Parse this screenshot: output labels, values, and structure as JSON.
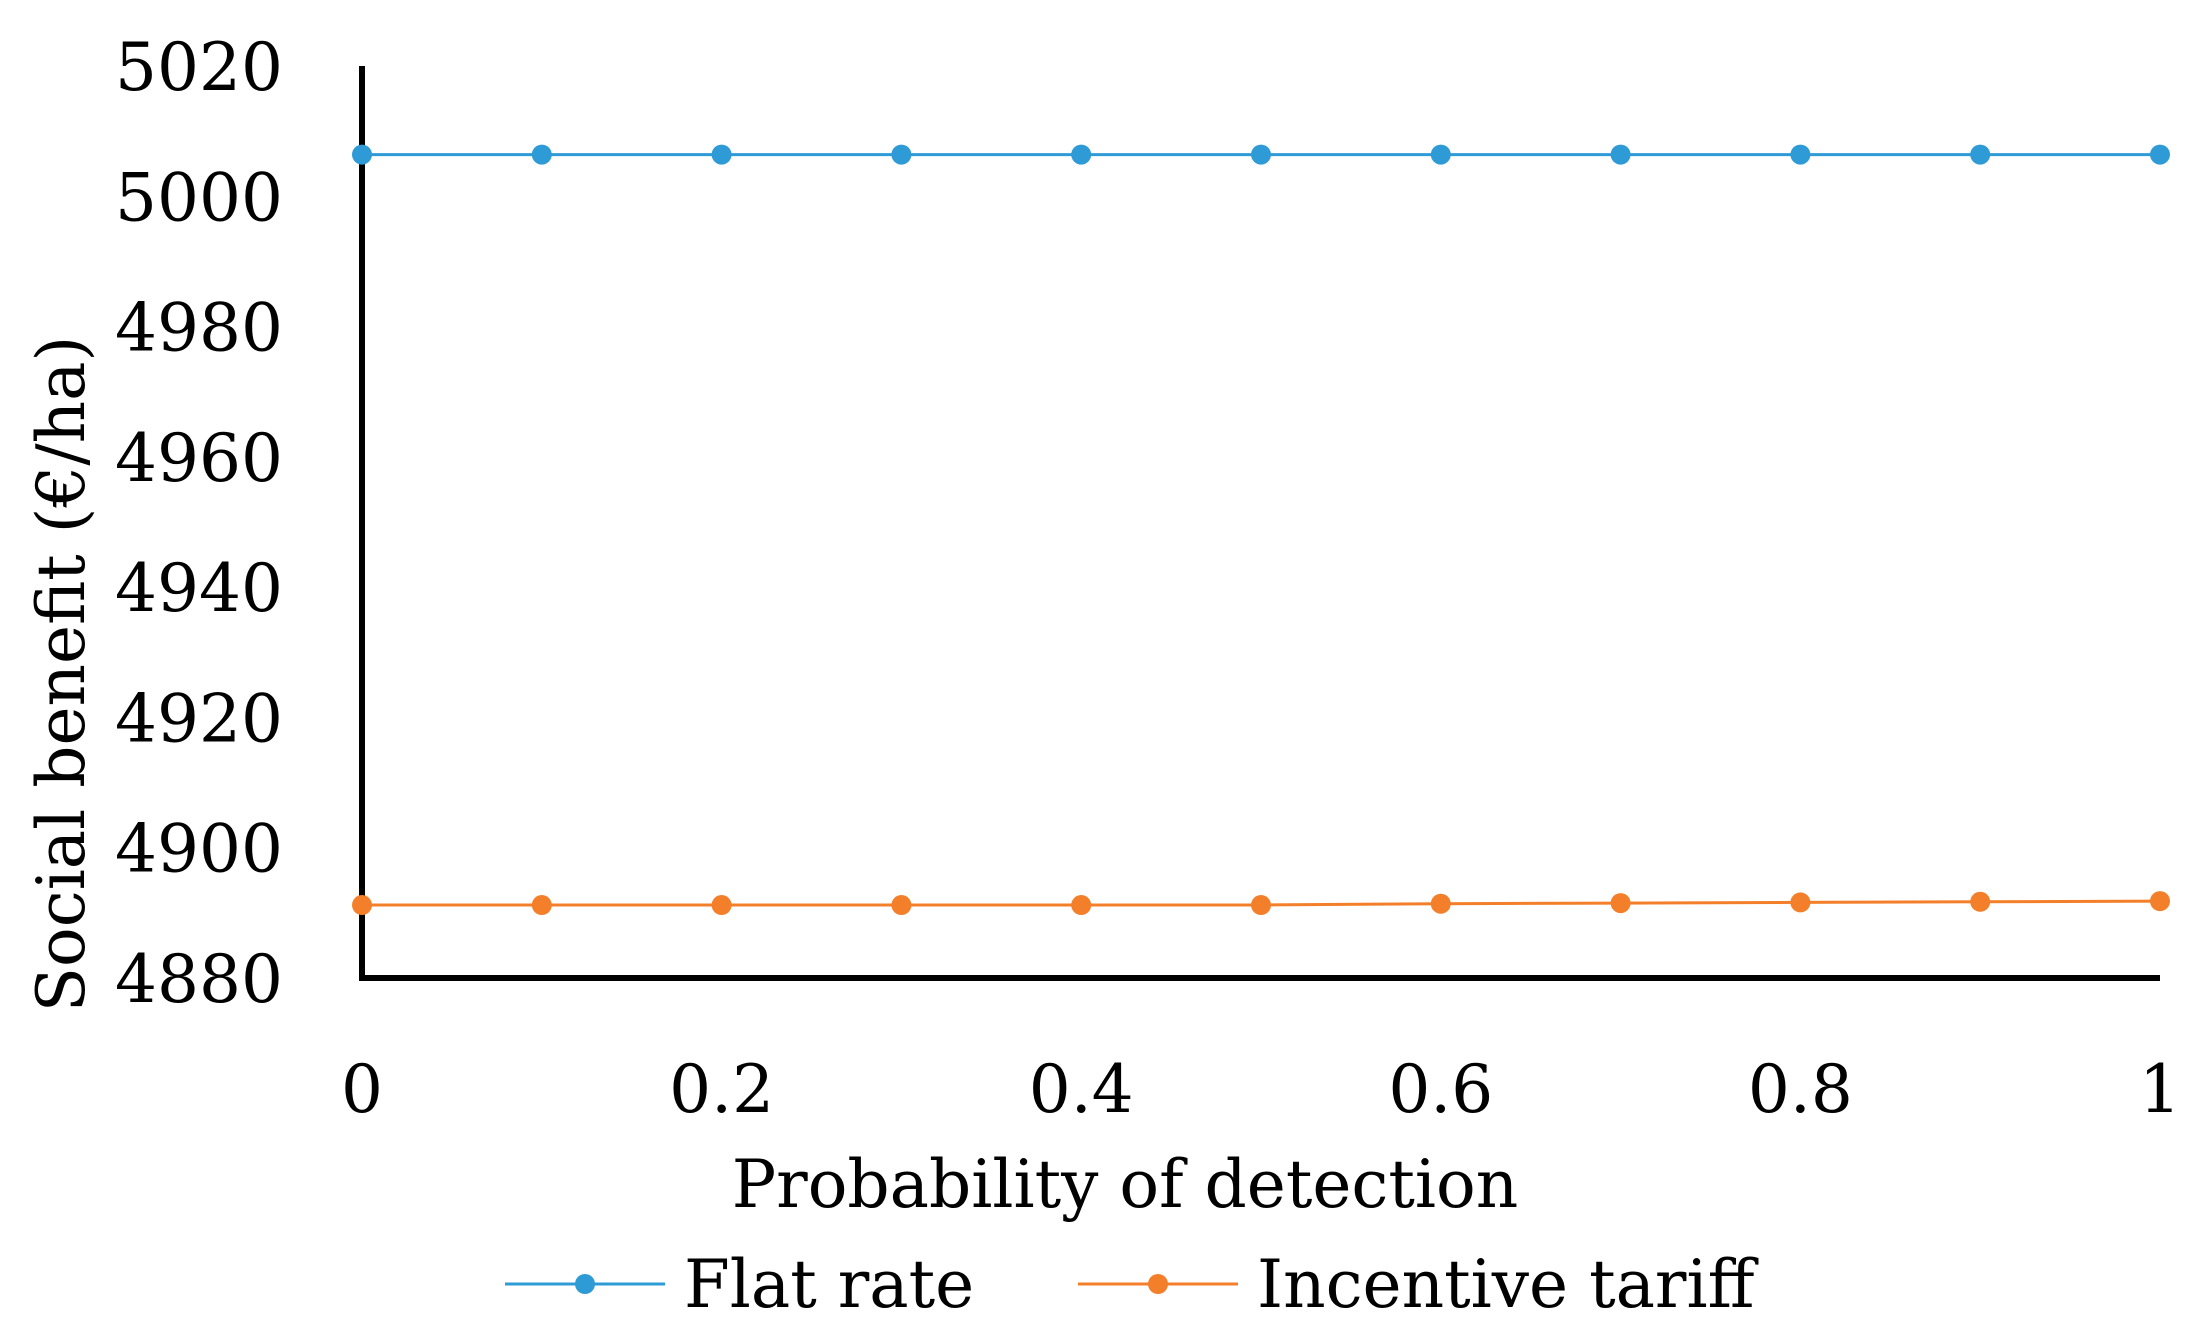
{
  "chart_data": {
    "type": "line",
    "title": "",
    "xlabel": "Probability of detection",
    "ylabel": "Social benefit (€/ha)",
    "x": [
      0,
      0.1,
      0.2,
      0.3,
      0.4,
      0.5,
      0.6,
      0.7,
      0.8,
      0.9,
      1
    ],
    "xlim": [
      0,
      1
    ],
    "ylim": [
      4880,
      5020
    ],
    "x_ticks": [
      0,
      0.2,
      0.4,
      0.6,
      0.8,
      1
    ],
    "x_tick_labels": [
      "0",
      "0.2",
      "0.4",
      "0.6",
      "0.8",
      "1"
    ],
    "y_ticks": [
      4880,
      4900,
      4920,
      4940,
      4960,
      4980,
      5000,
      5020
    ],
    "y_tick_labels": [
      "4880",
      "4900",
      "4920",
      "4940",
      "4960",
      "4980",
      "5000",
      "5020"
    ],
    "grid": false,
    "legend_position": "bottom",
    "series": [
      {
        "name": "Flat rate",
        "color": "#2E9BD6",
        "values": [
          5006.4,
          5006.4,
          5006.4,
          5006.4,
          5006.4,
          5006.4,
          5006.4,
          5006.4,
          5006.4,
          5006.4,
          5006.4
        ]
      },
      {
        "name": "Incentive tariff",
        "color": "#F47F2A",
        "values": [
          4891.2,
          4891.2,
          4891.2,
          4891.2,
          4891.2,
          4891.2,
          4891.4,
          4891.5,
          4891.6,
          4891.7,
          4891.8
        ]
      }
    ]
  }
}
